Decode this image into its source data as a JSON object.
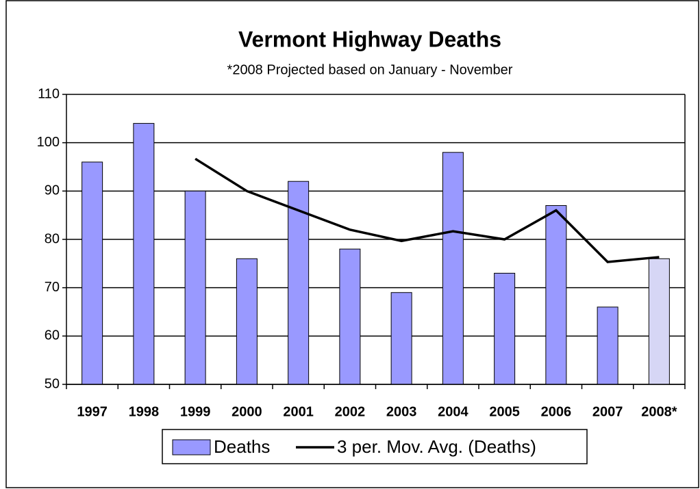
{
  "chart_data": {
    "type": "bar",
    "title": "Vermont Highway Deaths",
    "subtitle": "*2008 Projected based on January - November",
    "categories": [
      "1997",
      "1998",
      "1999",
      "2000",
      "2001",
      "2002",
      "2003",
      "2004",
      "2005",
      "2006",
      "2007",
      "2008*"
    ],
    "series": [
      {
        "name": "Deaths",
        "color": "#9999ff",
        "type": "bar",
        "values": [
          96,
          104,
          90,
          76,
          92,
          78,
          69,
          98,
          73,
          87,
          66,
          76
        ],
        "bar_colors": [
          "#9999ff",
          "#9999ff",
          "#9999ff",
          "#9999ff",
          "#9999ff",
          "#9999ff",
          "#9999ff",
          "#9999ff",
          "#9999ff",
          "#9999ff",
          "#9999ff",
          "#d6d6f5"
        ]
      },
      {
        "name": "3 per. Mov. Avg. (Deaths)",
        "color": "#000000",
        "type": "line",
        "values": [
          null,
          null,
          96.67,
          90,
          86,
          82,
          79.67,
          81.67,
          80,
          86,
          75.33,
          76.33
        ]
      }
    ],
    "ylim": [
      50,
      110
    ],
    "yticks": [
      50,
      60,
      70,
      80,
      90,
      100,
      110
    ],
    "grid": true,
    "legend": "bottom"
  }
}
